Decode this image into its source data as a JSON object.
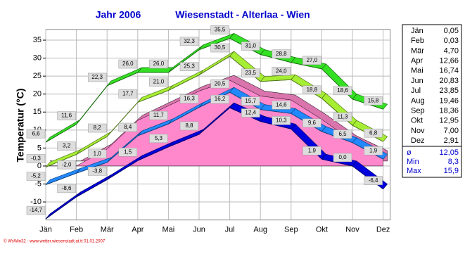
{
  "chart_data": {
    "type": "line",
    "title": "Jahr  2006",
    "subtitle": "Wiesenstadt - Alterlaa - Wien",
    "y_label": "Temperatur  (°C)",
    "categories": [
      "Jän",
      "Feb",
      "Mär",
      "Apr",
      "Mai",
      "Jun",
      "Jul",
      "Aug",
      "Sep",
      "Okt",
      "Nov",
      "Dez"
    ],
    "ylim": [
      -15,
      38
    ],
    "yticks": [
      -10,
      -5,
      0,
      5,
      10,
      15,
      20,
      25,
      30,
      35
    ],
    "grid": true,
    "series": [
      {
        "type": "area",
        "color": "#ff88cc",
        "values": [
          0.05,
          0.03,
          4.7,
          12.66,
          16.74,
          20.83,
          23.85,
          19.46,
          18.36,
          12.95,
          7.0,
          2.91
        ]
      },
      {
        "type": "line",
        "color": "#a6ee33",
        "values": [
          -0.3,
          3.2,
          8.2,
          17.7,
          21.0,
          25.3,
          30.5,
          23.5,
          24.0,
          18.8,
          11.3,
          6.8
        ],
        "value_labels": [
          "-0,3",
          "3,2",
          "8,2",
          "17,7",
          "21,0",
          "25,3",
          "30,5",
          "23,5",
          "24,0",
          "18,8",
          "11,3",
          "6,8"
        ]
      },
      {
        "type": "line",
        "color": "#33e022",
        "values": [
          6.6,
          11.6,
          22.3,
          26.0,
          26.0,
          32.3,
          35.5,
          31.0,
          28.8,
          27.0,
          18.6,
          15.8
        ],
        "value_labels": [
          "6,6",
          "11,6",
          "22,3",
          "26,0",
          "26,0",
          "32,3",
          "35,5",
          "31,0",
          "28,8",
          "27,0",
          "18,6",
          "15,8"
        ]
      },
      {
        "type": "line",
        "color": "#2288ff",
        "values": [
          -5.2,
          -2.0,
          1.0,
          8.4,
          11.7,
          16.3,
          20.5,
          15.7,
          14.6,
          9.6,
          6.5,
          1.9
        ],
        "value_labels": [
          "-5,2",
          "-2,0",
          "1,0",
          "8,4",
          "11,7",
          "16,3",
          "20,5",
          "15,7",
          "14,6",
          "9,6",
          "6,5",
          "1,9"
        ]
      },
      {
        "type": "line",
        "color": "#0000dd",
        "values": [
          -14.7,
          -8.6,
          -3.8,
          1.5,
          5.3,
          8.8,
          16.2,
          12.4,
          10.3,
          1.9,
          0.0,
          -6.4
        ],
        "value_labels": [
          "-14,7",
          "-8,6",
          "-3,8",
          "1,5",
          "5,3",
          "8,8",
          "16,2",
          "12,4",
          "10,3",
          "1,9",
          "0,0",
          "-6,4"
        ]
      }
    ]
  },
  "table": {
    "rows": [
      [
        "Jän",
        "0,05"
      ],
      [
        "Feb",
        "0,03"
      ],
      [
        "Mär",
        "4,70"
      ],
      [
        "Apr",
        "12,66"
      ],
      [
        "Mai",
        "16,74"
      ],
      [
        "Jun",
        "20,83"
      ],
      [
        "Jul",
        "23,85"
      ],
      [
        "Aug",
        "19,46"
      ],
      [
        "Sep",
        "18,36"
      ],
      [
        "Okt",
        "12,95"
      ],
      [
        "Nov",
        "7,00"
      ],
      [
        "Dez",
        "2,91"
      ]
    ],
    "summary": [
      [
        "ø",
        "12,05"
      ],
      [
        "Min",
        "8,3"
      ],
      [
        "Max",
        "15,9"
      ]
    ]
  },
  "footer": "© WsWin32 - www.wetter.wiesenstadt.at.tt 01.01.2007"
}
